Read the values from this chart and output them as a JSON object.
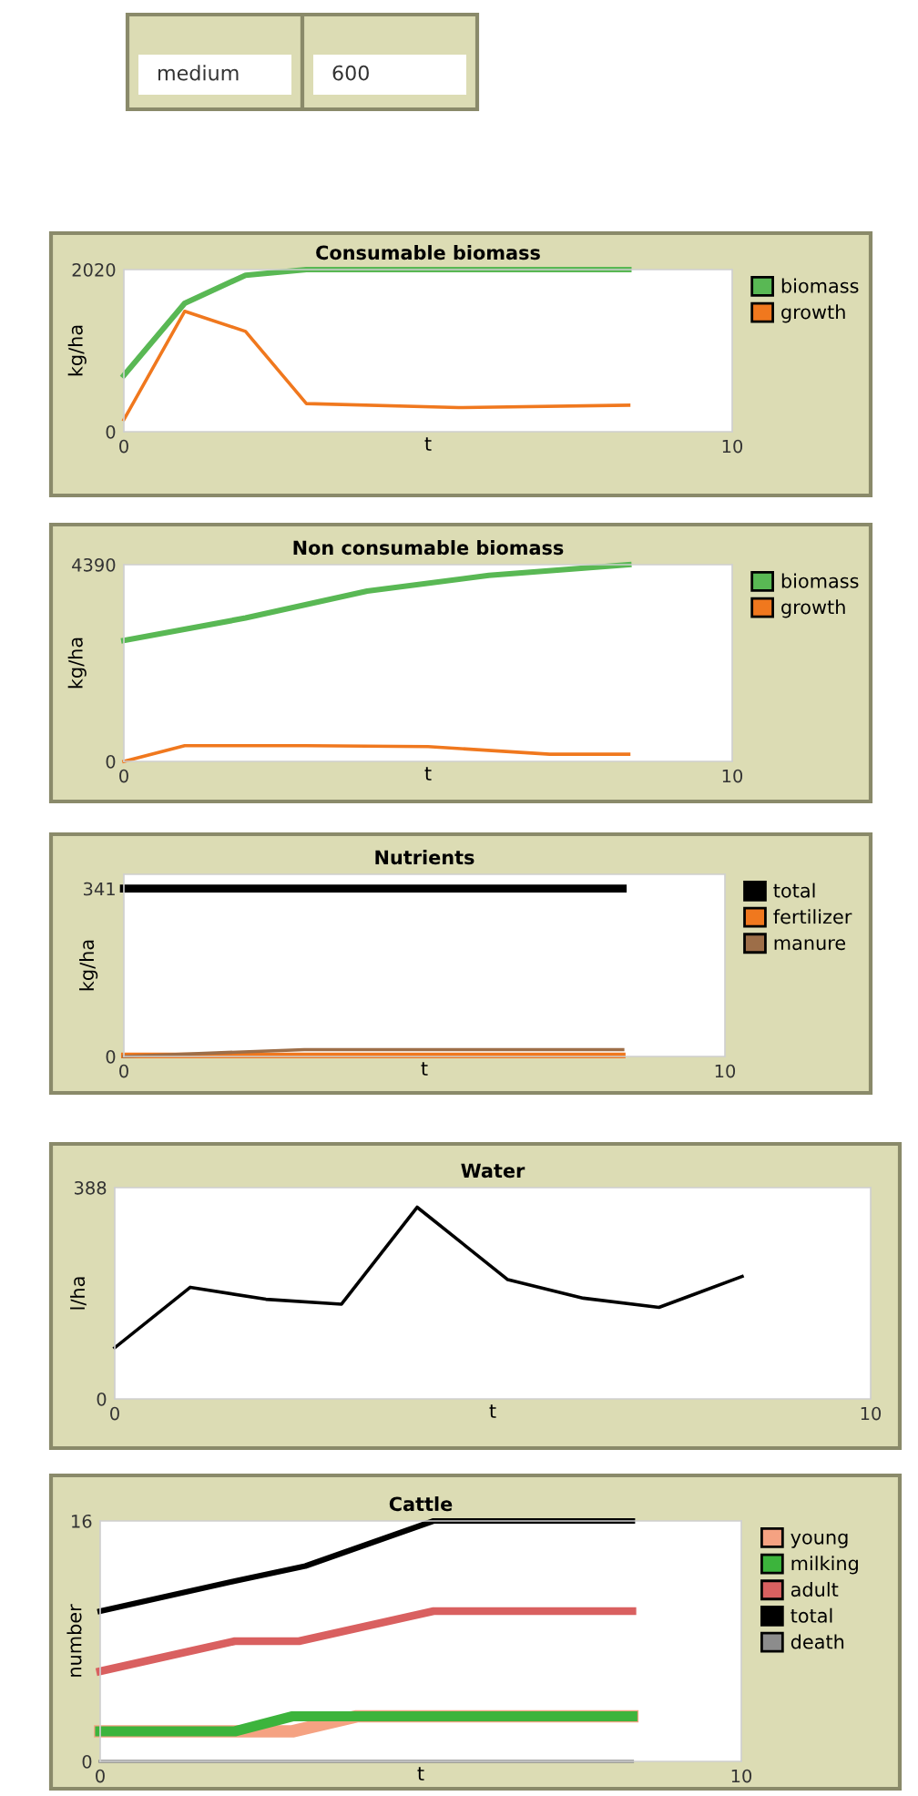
{
  "chart_data": [
    {
      "type": "other",
      "annotations": [
        "medium",
        "600"
      ]
    },
    {
      "type": "line",
      "title": "Consumable biomass",
      "xlabel": "t",
      "ylabel": "kg/ha",
      "xlim": [
        0,
        10
      ],
      "xticks": [
        0,
        10
      ],
      "ylim": [
        0,
        2020
      ],
      "yticks": [
        0,
        2020
      ],
      "grid": false,
      "legend": "right",
      "series": [
        {
          "name": "biomass",
          "color": "#59b854",
          "x": [
            0,
            1,
            2,
            3,
            5.5,
            8.3
          ],
          "values": [
            700,
            1600,
            1950,
            2020,
            2020,
            2020
          ]
        },
        {
          "name": "growth",
          "color": "#f0781e",
          "x": [
            0,
            1,
            2,
            3,
            5.5,
            8.3
          ],
          "values": [
            150,
            1500,
            1250,
            350,
            300,
            330
          ]
        }
      ]
    },
    {
      "type": "line",
      "title": "Non consumable biomass",
      "xlabel": "t",
      "ylabel": "kg/ha",
      "xlim": [
        0,
        10
      ],
      "xticks": [
        0,
        10
      ],
      "ylim": [
        0,
        4390
      ],
      "yticks": [
        0,
        4390
      ],
      "grid": false,
      "legend": "right",
      "series": [
        {
          "name": "biomass",
          "color": "#59b854",
          "x": [
            0,
            2,
            4,
            6,
            8.3
          ],
          "values": [
            2700,
            3200,
            3800,
            4150,
            4390
          ]
        },
        {
          "name": "growth",
          "color": "#f0781e",
          "x": [
            0,
            1,
            3,
            5,
            7,
            8.3
          ],
          "values": [
            0,
            350,
            350,
            330,
            160,
            160
          ]
        }
      ]
    },
    {
      "type": "line",
      "title": "Nutrients",
      "xlabel": "t",
      "ylabel": "kg/ha",
      "xlim": [
        0,
        10
      ],
      "xticks": [
        0,
        10
      ],
      "ylim": [
        0,
        370
      ],
      "yticks": [
        0,
        341
      ],
      "grid": false,
      "legend": "right",
      "series": [
        {
          "name": "total",
          "color": "#000000",
          "x": [
            0,
            8.3
          ],
          "values": [
            341,
            341
          ]
        },
        {
          "name": "fertilizer",
          "color": "#f0781e",
          "x": [
            0,
            8.3
          ],
          "values": [
            2,
            2
          ]
        },
        {
          "name": "manure",
          "color": "#9d6e48",
          "x": [
            0,
            3,
            8.3
          ],
          "values": [
            0,
            14,
            14
          ]
        }
      ]
    },
    {
      "type": "line",
      "title": "Water",
      "xlabel": "t",
      "ylabel": "l/ha",
      "xlim": [
        0,
        10
      ],
      "xticks": [
        0,
        10
      ],
      "ylim": [
        0,
        388
      ],
      "yticks": [
        0,
        388
      ],
      "grid": false,
      "series": [
        {
          "color": "#000000",
          "x": [
            0,
            1,
            2,
            3,
            4,
            5.2,
            6.2,
            7.2,
            8.3
          ],
          "values": [
            94,
            205,
            183,
            174,
            352,
            219,
            185,
            168,
            225
          ]
        }
      ]
    },
    {
      "type": "line",
      "title": "Cattle",
      "xlabel": "t",
      "ylabel": "number",
      "xlim": [
        0,
        10
      ],
      "xticks": [
        0,
        10
      ],
      "ylim": [
        0,
        16
      ],
      "yticks": [
        0,
        16
      ],
      "grid": false,
      "legend": "right",
      "series": [
        {
          "name": "young",
          "color": "#f5a282",
          "x": [
            0,
            3,
            4,
            8.3
          ],
          "values": [
            2,
            2,
            3,
            3
          ]
        },
        {
          "name": "milking",
          "color": "#3cb43c",
          "x": [
            0,
            2.1,
            3,
            8.3
          ],
          "values": [
            2,
            2,
            3,
            3
          ]
        },
        {
          "name": "adult",
          "color": "#d96060",
          "x": [
            0,
            2.1,
            3.1,
            5.2,
            8.3
          ],
          "values": [
            6,
            8,
            8,
            10,
            10
          ]
        },
        {
          "name": "total",
          "color": "#000000",
          "x": [
            0,
            2.1,
            3.2,
            5.2,
            8.3
          ],
          "values": [
            10,
            12,
            13,
            16,
            16
          ]
        },
        {
          "name": "death",
          "color": "#8c8c8c",
          "x": [
            0,
            8.3
          ],
          "values": [
            0,
            0
          ]
        }
      ]
    }
  ]
}
